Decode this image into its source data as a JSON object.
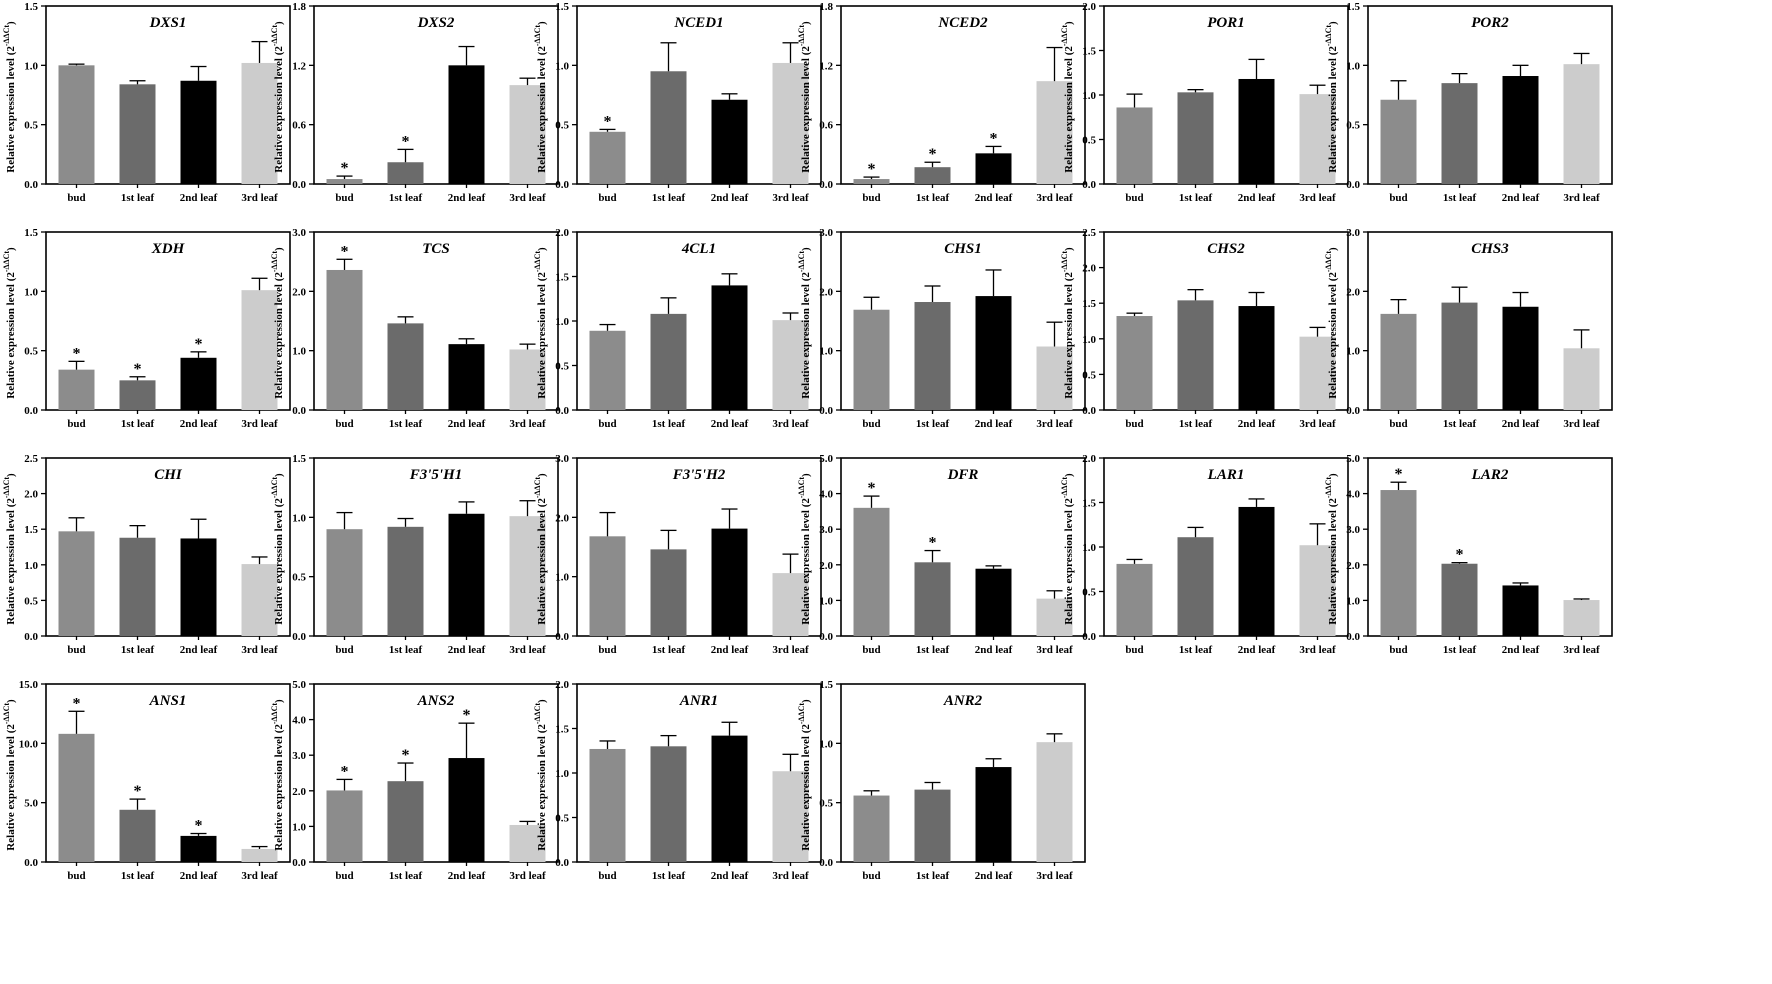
{
  "ylabel": "Relative expression level (2",
  "ylabel_sup": "-ΔΔCt",
  "ylabel_end": ")",
  "series_colors": [
    "#8c8c8c",
    "#6b6b6b",
    "#000000",
    "#cccccc"
  ],
  "chart_data": [
    {
      "type": "bar",
      "title": "DXS1",
      "categories": [
        "bud",
        "1st leaf",
        "2nd leaf",
        "3rd leaf"
      ],
      "values": [
        1.0,
        0.84,
        0.87,
        1.02
      ],
      "errors": [
        0.01,
        0.03,
        0.12,
        0.18
      ],
      "significant": [
        false,
        false,
        false,
        false
      ],
      "ylim": [
        0,
        1.5
      ],
      "yticks": [
        0.0,
        0.5,
        1.0,
        1.5
      ],
      "tick_format": 1
    },
    {
      "type": "bar",
      "title": "DXS2",
      "categories": [
        "bud",
        "1st leaf",
        "2nd leaf",
        "3rd leaf"
      ],
      "values": [
        0.05,
        0.22,
        1.2,
        1.0
      ],
      "errors": [
        0.03,
        0.13,
        0.19,
        0.07
      ],
      "significant": [
        true,
        true,
        false,
        false
      ],
      "ylim": [
        0,
        1.8
      ],
      "yticks": [
        0.0,
        0.6,
        1.2,
        1.8
      ],
      "tick_format": 1
    },
    {
      "type": "bar",
      "title": "NCED1",
      "categories": [
        "bud",
        "1st leaf",
        "2nd leaf",
        "3rd leaf"
      ],
      "values": [
        0.44,
        0.95,
        0.71,
        1.02
      ],
      "errors": [
        0.02,
        0.24,
        0.05,
        0.17
      ],
      "significant": [
        true,
        false,
        false,
        false
      ],
      "ylim": [
        0,
        1.5
      ],
      "yticks": [
        0.0,
        0.5,
        1.0,
        1.5
      ],
      "tick_format": 1
    },
    {
      "type": "bar",
      "title": "NCED2",
      "categories": [
        "bud",
        "1st leaf",
        "2nd leaf",
        "3rd leaf"
      ],
      "values": [
        0.05,
        0.17,
        0.31,
        1.04
      ],
      "errors": [
        0.02,
        0.05,
        0.07,
        0.34
      ],
      "significant": [
        true,
        true,
        true,
        false
      ],
      "ylim": [
        0,
        1.8
      ],
      "yticks": [
        0.0,
        0.6,
        1.2,
        1.8
      ],
      "tick_format": 1
    },
    {
      "type": "bar",
      "title": "POR1",
      "categories": [
        "bud",
        "1st leaf",
        "2nd leaf",
        "3rd leaf"
      ],
      "values": [
        0.86,
        1.03,
        1.18,
        1.01
      ],
      "errors": [
        0.15,
        0.03,
        0.22,
        0.1
      ],
      "significant": [
        false,
        false,
        false,
        false
      ],
      "ylim": [
        0,
        2.0
      ],
      "yticks": [
        0.0,
        0.5,
        1.0,
        1.5,
        2.0
      ],
      "tick_format": 1
    },
    {
      "type": "bar",
      "title": "POR2",
      "categories": [
        "bud",
        "1st leaf",
        "2nd leaf",
        "3rd leaf"
      ],
      "values": [
        0.71,
        0.85,
        0.91,
        1.01
      ],
      "errors": [
        0.16,
        0.08,
        0.09,
        0.09
      ],
      "significant": [
        false,
        false,
        false,
        false
      ],
      "ylim": [
        0,
        1.5
      ],
      "yticks": [
        0.0,
        0.5,
        1.0,
        1.5
      ],
      "tick_format": 1
    },
    {
      "type": "bar",
      "title": "XDH",
      "categories": [
        "bud",
        "1st leaf",
        "2nd leaf",
        "3rd leaf"
      ],
      "values": [
        0.34,
        0.25,
        0.44,
        1.01
      ],
      "errors": [
        0.07,
        0.03,
        0.05,
        0.1
      ],
      "significant": [
        true,
        true,
        true,
        false
      ],
      "ylim": [
        0,
        1.5
      ],
      "yticks": [
        0.0,
        0.5,
        1.0,
        1.5
      ],
      "tick_format": 1
    },
    {
      "type": "bar",
      "title": "TCS",
      "categories": [
        "bud",
        "1st leaf",
        "2nd leaf",
        "3rd leaf"
      ],
      "values": [
        2.36,
        1.46,
        1.11,
        1.02
      ],
      "errors": [
        0.18,
        0.11,
        0.09,
        0.09
      ],
      "significant": [
        true,
        false,
        false,
        false
      ],
      "ylim": [
        0,
        3.0
      ],
      "yticks": [
        0.0,
        1.0,
        2.0,
        3.0
      ],
      "tick_format": 1
    },
    {
      "type": "bar",
      "title": "4CL1",
      "categories": [
        "bud",
        "1st leaf",
        "2nd leaf",
        "3rd leaf"
      ],
      "values": [
        0.89,
        1.08,
        1.4,
        1.01
      ],
      "errors": [
        0.07,
        0.18,
        0.13,
        0.08
      ],
      "significant": [
        false,
        false,
        false,
        false
      ],
      "ylim": [
        0,
        2.0
      ],
      "yticks": [
        0.0,
        0.5,
        1.0,
        1.5,
        2.0
      ],
      "tick_format": 1
    },
    {
      "type": "bar",
      "title": "CHS1",
      "categories": [
        "bud",
        "1st leaf",
        "2nd leaf",
        "3rd leaf"
      ],
      "values": [
        1.69,
        1.82,
        1.92,
        1.07
      ],
      "errors": [
        0.21,
        0.27,
        0.44,
        0.41
      ],
      "significant": [
        false,
        false,
        false,
        false
      ],
      "ylim": [
        0,
        3.0
      ],
      "yticks": [
        0.0,
        1.0,
        2.0,
        3.0
      ],
      "tick_format": 1
    },
    {
      "type": "bar",
      "title": "CHS2",
      "categories": [
        "bud",
        "1st leaf",
        "2nd leaf",
        "3rd leaf"
      ],
      "values": [
        1.32,
        1.54,
        1.46,
        1.03
      ],
      "errors": [
        0.04,
        0.15,
        0.19,
        0.13
      ],
      "significant": [
        false,
        false,
        false,
        false
      ],
      "ylim": [
        0,
        2.5
      ],
      "yticks": [
        0.0,
        0.5,
        1.0,
        1.5,
        2.0,
        2.5
      ],
      "tick_format": 1
    },
    {
      "type": "bar",
      "title": "CHS3",
      "categories": [
        "bud",
        "1st leaf",
        "2nd leaf",
        "3rd leaf"
      ],
      "values": [
        1.62,
        1.81,
        1.74,
        1.04
      ],
      "errors": [
        0.24,
        0.26,
        0.24,
        0.31
      ],
      "significant": [
        false,
        false,
        false,
        false
      ],
      "ylim": [
        0,
        3.0
      ],
      "yticks": [
        0.0,
        1.0,
        2.0,
        3.0
      ],
      "tick_format": 1
    },
    {
      "type": "bar",
      "title": "CHI",
      "categories": [
        "bud",
        "1st leaf",
        "2nd leaf",
        "3rd leaf"
      ],
      "values": [
        1.47,
        1.38,
        1.37,
        1.01
      ],
      "errors": [
        0.19,
        0.17,
        0.27,
        0.1
      ],
      "significant": [
        false,
        false,
        false,
        false
      ],
      "ylim": [
        0,
        2.5
      ],
      "yticks": [
        0.0,
        0.5,
        1.0,
        1.5,
        2.0,
        2.5
      ],
      "tick_format": 1
    },
    {
      "type": "bar",
      "title": "F3'5'H1",
      "categories": [
        "bud",
        "1st leaf",
        "2nd leaf",
        "3rd leaf"
      ],
      "values": [
        0.9,
        0.92,
        1.03,
        1.01
      ],
      "errors": [
        0.14,
        0.07,
        0.1,
        0.13
      ],
      "significant": [
        false,
        false,
        false,
        false
      ],
      "ylim": [
        0,
        1.5
      ],
      "yticks": [
        0.0,
        0.5,
        1.0,
        1.5
      ],
      "tick_format": 1
    },
    {
      "type": "bar",
      "title": "F3'5'H2",
      "categories": [
        "bud",
        "1st leaf",
        "2nd leaf",
        "3rd leaf"
      ],
      "values": [
        1.68,
        1.46,
        1.81,
        1.06
      ],
      "errors": [
        0.4,
        0.32,
        0.33,
        0.32
      ],
      "significant": [
        false,
        false,
        false,
        false
      ],
      "ylim": [
        0,
        3.0
      ],
      "yticks": [
        0.0,
        1.0,
        2.0,
        3.0
      ],
      "tick_format": 1
    },
    {
      "type": "bar",
      "title": "DFR",
      "categories": [
        "bud",
        "1st leaf",
        "2nd leaf",
        "3rd leaf"
      ],
      "values": [
        3.6,
        2.07,
        1.89,
        1.05
      ],
      "errors": [
        0.33,
        0.33,
        0.08,
        0.22
      ],
      "significant": [
        true,
        true,
        false,
        false
      ],
      "ylim": [
        0,
        5.0
      ],
      "yticks": [
        0.0,
        1.0,
        2.0,
        3.0,
        4.0,
        5.0
      ],
      "tick_format": 1
    },
    {
      "type": "bar",
      "title": "LAR1",
      "categories": [
        "bud",
        "1st leaf",
        "2nd leaf",
        "3rd leaf"
      ],
      "values": [
        0.81,
        1.11,
        1.45,
        1.02
      ],
      "errors": [
        0.05,
        0.11,
        0.09,
        0.24
      ],
      "significant": [
        false,
        false,
        false,
        false
      ],
      "ylim": [
        0,
        2.0
      ],
      "yticks": [
        0.0,
        0.5,
        1.0,
        1.5,
        2.0
      ],
      "tick_format": 1
    },
    {
      "type": "bar",
      "title": "LAR2",
      "categories": [
        "bud",
        "1st leaf",
        "2nd leaf",
        "3rd leaf"
      ],
      "values": [
        4.1,
        2.03,
        1.42,
        1.01
      ],
      "errors": [
        0.22,
        0.03,
        0.07,
        0.03
      ],
      "significant": [
        true,
        true,
        false,
        false
      ],
      "ylim": [
        0,
        5.0
      ],
      "yticks": [
        0.0,
        1.0,
        2.0,
        3.0,
        4.0,
        5.0
      ],
      "tick_format": 1
    },
    {
      "type": "bar",
      "title": "ANS1",
      "categories": [
        "bud",
        "1st leaf",
        "2nd leaf",
        "3rd leaf"
      ],
      "values": [
        10.8,
        4.4,
        2.2,
        1.1
      ],
      "errors": [
        1.9,
        0.9,
        0.2,
        0.2
      ],
      "significant": [
        true,
        true,
        true,
        false
      ],
      "ylim": [
        0,
        15.0
      ],
      "yticks": [
        0.0,
        5.0,
        10.0,
        15.0
      ],
      "tick_format": 1
    },
    {
      "type": "bar",
      "title": "ANS2",
      "categories": [
        "bud",
        "1st leaf",
        "2nd leaf",
        "3rd leaf"
      ],
      "values": [
        2.01,
        2.27,
        2.92,
        1.04
      ],
      "errors": [
        0.31,
        0.51,
        0.98,
        0.1
      ],
      "significant": [
        true,
        true,
        true,
        false
      ],
      "ylim": [
        0,
        5.0
      ],
      "yticks": [
        0.0,
        1.0,
        2.0,
        3.0,
        4.0,
        5.0
      ],
      "tick_format": 1
    },
    {
      "type": "bar",
      "title": "ANR1",
      "categories": [
        "bud",
        "1st leaf",
        "2nd leaf",
        "3rd leaf"
      ],
      "values": [
        1.27,
        1.3,
        1.42,
        1.02
      ],
      "errors": [
        0.09,
        0.12,
        0.15,
        0.19
      ],
      "significant": [
        false,
        false,
        false,
        false
      ],
      "ylim": [
        0,
        2.0
      ],
      "yticks": [
        0.0,
        0.5,
        1.0,
        1.5,
        2.0
      ],
      "tick_format": 1
    },
    {
      "type": "bar",
      "title": "ANR2",
      "categories": [
        "bud",
        "1st leaf",
        "2nd leaf",
        "3rd leaf"
      ],
      "values": [
        0.56,
        0.61,
        0.8,
        1.01
      ],
      "errors": [
        0.04,
        0.06,
        0.07,
        0.07
      ],
      "significant": [
        false,
        false,
        false,
        false
      ],
      "ylim": [
        0,
        1.5
      ],
      "yticks": [
        0.0,
        0.5,
        1.0,
        1.5
      ],
      "tick_format": 1
    }
  ]
}
